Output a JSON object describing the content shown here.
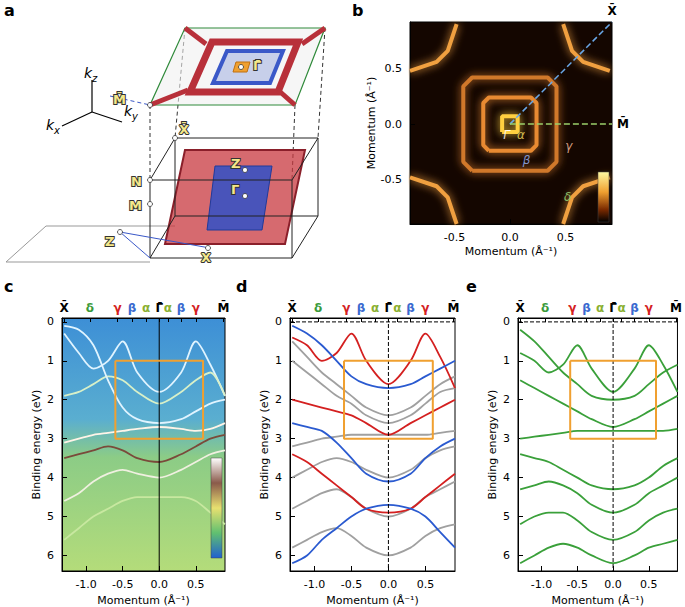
{
  "chart_data": [
    {
      "type": "diagram",
      "title": "a",
      "axes_labels": [
        {
          "text": "k",
          "sub": "z"
        },
        {
          "text": "k",
          "sub": "x"
        },
        {
          "text": "k",
          "sub": "y"
        }
      ],
      "labels": [
        "M̄",
        "X̄",
        "Γ̄",
        "Z",
        "Γ",
        "N",
        "M",
        "Z",
        "X"
      ]
    },
    {
      "type": "contour",
      "title": "b",
      "xlabel": "Momentum (Å⁻¹)",
      "ylabel": "Momentum (Å⁻¹)",
      "xlim": [
        -0.9,
        0.92
      ],
      "ylim": [
        -0.9,
        0.92
      ],
      "xticks": [
        -0.5,
        {
          "value": 0,
          "label": "0.0"
        },
        0.5
      ],
      "yticks": [
        -0.5,
        {
          "value": 0,
          "label": "0.0"
        },
        0.5
      ],
      "series": [
        {
          "color": "#ffd040",
          "x": [
            -0.07,
            0.07,
            0.07,
            -0.07,
            -0.07
          ],
          "y": [
            -0.07,
            -0.07,
            0.07,
            0.07,
            -0.07
          ]
        },
        {
          "color": "#e88a30",
          "x": [
            -0.19,
            0.19,
            0.24,
            0.24,
            0.19,
            -0.19,
            -0.24,
            -0.24,
            -0.19
          ],
          "y": [
            -0.24,
            -0.24,
            -0.19,
            0.19,
            0.24,
            0.24,
            0.19,
            -0.19,
            -0.24
          ]
        },
        {
          "color": "#d0782a",
          "x": [
            -0.34,
            0.34,
            0.42,
            0.42,
            0.34,
            -0.34,
            -0.42,
            -0.42,
            -0.34
          ],
          "y": [
            -0.42,
            -0.42,
            -0.34,
            0.34,
            0.42,
            0.42,
            0.34,
            -0.34,
            -0.42
          ]
        },
        {
          "color": "#f0a040",
          "x": [
            0.48,
            0.56,
            0.66,
            0.9
          ],
          "y": [
            0.9,
            0.66,
            0.56,
            0.48
          ]
        },
        {
          "color": "#f0a040",
          "x": [
            -0.48,
            -0.56,
            -0.66,
            -0.9
          ],
          "y": [
            0.9,
            0.66,
            0.56,
            0.48
          ]
        },
        {
          "color": "#f0a040",
          "x": [
            0.48,
            0.56,
            0.66,
            0.9
          ],
          "y": [
            -0.9,
            -0.66,
            -0.56,
            -0.48
          ]
        },
        {
          "color": "#f0a040",
          "x": [
            -0.48,
            -0.56,
            -0.66,
            -0.9
          ],
          "y": [
            -0.9,
            -0.66,
            -0.56,
            -0.48
          ]
        }
      ],
      "paths": [
        {
          "label": "X̄",
          "color": "#6aa8e8",
          "line_style": "dashed",
          "x": [
            0,
            0.92
          ],
          "y": [
            0,
            0.92
          ]
        },
        {
          "label": "M̄",
          "color": "#9bd06a",
          "line_style": "dashed",
          "x": [
            0,
            0.92
          ],
          "y": [
            0,
            0
          ]
        }
      ],
      "annotations": [
        {
          "text": "Γ̄",
          "x": -0.03,
          "y": -0.1,
          "color": "#ffffff"
        },
        {
          "text": "α",
          "x": 0.1,
          "y": -0.1,
          "color": "#ffe060"
        },
        {
          "text": "β",
          "x": 0.15,
          "y": -0.32,
          "color": "#9ab8ff"
        },
        {
          "text": "γ",
          "x": 0.53,
          "y": -0.2,
          "color": "#ffc0a0"
        },
        {
          "text": "δ",
          "x": 0.52,
          "y": -0.66,
          "color": "#a0e080"
        }
      ]
    },
    {
      "type": "line",
      "title": "c",
      "xlabel": "Momentum (Å⁻¹)",
      "ylabel": "Binding energy (eV)",
      "xlim": [
        -1.33,
        0.9
      ],
      "ylim": [
        -0.1,
        6.4
      ],
      "xticks": [
        {
          "value": -1,
          "label": "-1.0"
        },
        -0.5,
        {
          "value": 0,
          "label": "0.0"
        },
        0.5
      ],
      "yticks": [
        0,
        1,
        2,
        3,
        4,
        5,
        6
      ],
      "x2ticks": [
        {
          "value": -1.3,
          "label": "X̄",
          "color": "#000000"
        },
        {
          "value": -0.95,
          "label": "δ",
          "color": "#3a9a3a"
        },
        {
          "value": -0.57,
          "label": "γ",
          "color": "#d42020"
        },
        {
          "value": -0.37,
          "label": "β",
          "color": "#3a6ad0"
        },
        {
          "value": -0.18,
          "label": "α",
          "color": "#8ab030"
        },
        {
          "value": 0,
          "label": "Γ̄",
          "color": "#000000"
        },
        {
          "value": 0.12,
          "label": "α",
          "color": "#8ab030"
        },
        {
          "value": 0.3,
          "label": "β",
          "color": "#3a6ad0"
        },
        {
          "value": 0.5,
          "label": "γ",
          "color": "#d42020"
        },
        {
          "value": 0.88,
          "label": "M̄",
          "color": "#000000"
        }
      ],
      "x": [
        -1.3,
        -1.1,
        -0.9,
        -0.7,
        -0.5,
        -0.3,
        0,
        0.3,
        0.5,
        0.7,
        0.9
      ],
      "series": [
        {
          "color": "#e0f4ff",
          "values": [
            0.3,
            0.8,
            1.2,
            1.0,
            0.5,
            1.3,
            1.8,
            1.3,
            0.5,
            1.1,
            1.9
          ]
        },
        {
          "color": "#d8f0c8",
          "values": [
            1.9,
            1.8,
            1.6,
            1.4,
            1.5,
            1.8,
            2.1,
            1.8,
            1.5,
            1.3,
            1.9
          ]
        },
        {
          "color": "#fff4e8",
          "values": [
            3.1,
            3.0,
            2.9,
            2.85,
            2.8,
            2.75,
            2.7,
            2.75,
            2.8,
            2.75,
            2.6
          ]
        },
        {
          "color": "#7a4a3a",
          "values": [
            3.5,
            3.4,
            3.3,
            3.2,
            3.3,
            3.5,
            3.6,
            3.4,
            3.2,
            3.0,
            2.9
          ]
        },
        {
          "color": "#f0f0e0",
          "values": [
            4.6,
            4.4,
            4.1,
            3.9,
            3.8,
            3.9,
            4.0,
            3.8,
            3.6,
            3.4,
            3.3
          ]
        },
        {
          "color": "#c8e8a0",
          "values": [
            5.6,
            5.3,
            5.0,
            4.8,
            4.6,
            4.5,
            4.5,
            4.5,
            4.6,
            4.9,
            5.2
          ]
        },
        {
          "color": "#e0f4ff",
          "values": [
            0.1,
            0.2,
            0.6,
            1.5,
            2.2,
            2.5,
            2.6,
            2.5,
            2.3,
            2.1,
            2.0
          ]
        },
        {
          "color": "#000000",
          "line_style": "solid",
          "x": [
            0,
            0
          ],
          "values": [
            -0.1,
            6.4
          ]
        }
      ],
      "box": {
        "x": [
          -0.6,
          0.6
        ],
        "y": [
          1,
          3
        ],
        "color": "#f0a030"
      }
    },
    {
      "type": "line",
      "title": "d",
      "xlabel": "Momentum (Å⁻¹)",
      "ylabel": "Binding energy (eV)",
      "xlim": [
        -1.33,
        0.9
      ],
      "ylim": [
        -0.1,
        6.4
      ],
      "xticks": [
        {
          "value": -1,
          "label": "-1.0"
        },
        -0.5,
        {
          "value": 0,
          "label": "0.0"
        },
        0.5
      ],
      "yticks": [
        0,
        1,
        2,
        3,
        4,
        5,
        6
      ],
      "x2ticks": [
        {
          "value": -1.3,
          "label": "X̄",
          "color": "#000000"
        },
        {
          "value": -0.95,
          "label": "δ",
          "color": "#3a9a3a"
        },
        {
          "value": -0.57,
          "label": "γ",
          "color": "#d42020"
        },
        {
          "value": -0.37,
          "label": "β",
          "color": "#3a6ad0"
        },
        {
          "value": -0.18,
          "label": "α",
          "color": "#8ab030"
        },
        {
          "value": 0,
          "label": "Γ̄",
          "color": "#000000"
        },
        {
          "value": 0.12,
          "label": "α",
          "color": "#8ab030"
        },
        {
          "value": 0.3,
          "label": "β",
          "color": "#3a6ad0"
        },
        {
          "value": 0.5,
          "label": "γ",
          "color": "#d42020"
        },
        {
          "value": 0.88,
          "label": "M̄",
          "color": "#000000"
        }
      ],
      "x": [
        -1.3,
        -1.1,
        -0.9,
        -0.7,
        -0.5,
        -0.3,
        0,
        0.3,
        0.5,
        0.7,
        0.9
      ],
      "series": [
        {
          "color": "#a0a0a0",
          "values": [
            0.5,
            0.9,
            1.3,
            1.6,
            1.9,
            2.2,
            2.4,
            2.2,
            1.9,
            1.6,
            1.4
          ]
        },
        {
          "color": "#a0a0a0",
          "values": [
            1.0,
            1.3,
            1.6,
            1.9,
            2.1,
            2.4,
            2.6,
            2.4,
            2.1,
            1.8,
            1.7
          ]
        },
        {
          "color": "#a0a0a0",
          "values": [
            3.2,
            3.1,
            3.0,
            2.95,
            2.9,
            2.9,
            2.9,
            2.9,
            2.9,
            2.85,
            2.8
          ]
        },
        {
          "color": "#a0a0a0",
          "values": [
            4.0,
            3.8,
            3.6,
            3.5,
            3.6,
            3.8,
            4.0,
            3.8,
            3.5,
            3.3,
            3.2
          ]
        },
        {
          "color": "#a0a0a0",
          "values": [
            4.8,
            4.6,
            4.4,
            4.3,
            4.5,
            4.8,
            5.0,
            4.8,
            4.5,
            4.3,
            4.1
          ]
        },
        {
          "color": "#a0a0a0",
          "values": [
            5.8,
            5.6,
            5.4,
            5.3,
            5.5,
            5.8,
            6.0,
            5.8,
            5.5,
            5.3,
            5.2
          ]
        },
        {
          "color": "#d42020",
          "values": [
            0.4,
            0.6,
            1.0,
            0.8,
            0.3,
            1.0,
            1.6,
            1.0,
            0.3,
            0.9,
            1.7
          ]
        },
        {
          "color": "#d42020",
          "values": [
            2.0,
            2.1,
            2.2,
            2.3,
            2.4,
            2.6,
            2.9,
            2.6,
            2.4,
            2.2,
            2.0
          ]
        },
        {
          "color": "#d42020",
          "values": [
            3.4,
            3.6,
            3.9,
            4.2,
            4.5,
            4.8,
            4.9,
            4.8,
            4.5,
            4.2,
            3.9
          ]
        },
        {
          "color": "#2a5ad0",
          "values": [
            0.1,
            0.3,
            0.6,
            1.0,
            1.4,
            1.6,
            1.7,
            1.6,
            1.4,
            1.2,
            1.0
          ]
        },
        {
          "color": "#2a5ad0",
          "values": [
            2.6,
            2.7,
            2.8,
            3.1,
            3.5,
            3.9,
            4.1,
            3.9,
            3.5,
            3.2,
            3.0
          ]
        },
        {
          "color": "#2a5ad0",
          "values": [
            6.2,
            6.0,
            5.6,
            5.3,
            5.0,
            4.8,
            4.7,
            4.8,
            5.0,
            5.4,
            5.8
          ]
        },
        {
          "color": "#000000",
          "line_style": "dashed",
          "x": [
            0,
            0
          ],
          "values": [
            -0.1,
            6.4
          ]
        },
        {
          "color": "#000000",
          "line_style": "dashed",
          "x": [
            -1.33,
            0.9
          ],
          "values": [
            0,
            0
          ]
        }
      ],
      "box": {
        "x": [
          -0.6,
          0.6
        ],
        "y": [
          1,
          3
        ],
        "color": "#f0a030"
      }
    },
    {
      "type": "line",
      "title": "e",
      "xlabel": "Momentum (Å⁻¹)",
      "ylabel": "Binding energy (eV)",
      "xlim": [
        -1.33,
        0.9
      ],
      "ylim": [
        -0.1,
        6.4
      ],
      "xticks": [
        {
          "value": -1,
          "label": "-1.0"
        },
        -0.5,
        {
          "value": 0,
          "label": "0.0"
        },
        0.5
      ],
      "yticks": [
        0,
        1,
        2,
        3,
        4,
        5,
        6
      ],
      "x2ticks": [
        {
          "value": -1.3,
          "label": "X̄",
          "color": "#000000"
        },
        {
          "value": -0.95,
          "label": "δ",
          "color": "#3a9a3a"
        },
        {
          "value": -0.57,
          "label": "γ",
          "color": "#d42020"
        },
        {
          "value": -0.37,
          "label": "β",
          "color": "#3a6ad0"
        },
        {
          "value": -0.18,
          "label": "α",
          "color": "#8ab030"
        },
        {
          "value": 0,
          "label": "Γ̄",
          "color": "#000000"
        },
        {
          "value": 0.12,
          "label": "α",
          "color": "#8ab030"
        },
        {
          "value": 0.3,
          "label": "β",
          "color": "#3a6ad0"
        },
        {
          "value": 0.5,
          "label": "γ",
          "color": "#d42020"
        },
        {
          "value": 0.88,
          "label": "M̄",
          "color": "#000000"
        }
      ],
      "x": [
        -1.3,
        -1.1,
        -0.9,
        -0.7,
        -0.5,
        -0.3,
        0,
        0.3,
        0.5,
        0.7,
        0.9
      ],
      "series": [
        {
          "color": "#3aa03a",
          "values": [
            0.2,
            0.5,
            0.9,
            1.3,
            1.6,
            1.9,
            2.0,
            1.9,
            1.6,
            1.3,
            1.1
          ]
        },
        {
          "color": "#3aa03a",
          "values": [
            0.8,
            1.0,
            1.3,
            1.1,
            0.6,
            1.2,
            1.8,
            1.2,
            0.6,
            1.1,
            1.8
          ]
        },
        {
          "color": "#3aa03a",
          "values": [
            1.5,
            1.7,
            1.9,
            2.1,
            2.3,
            2.5,
            2.7,
            2.5,
            2.3,
            2.1,
            1.9
          ]
        },
        {
          "color": "#3aa03a",
          "values": [
            3.0,
            2.95,
            2.9,
            2.85,
            2.8,
            2.8,
            2.8,
            2.8,
            2.8,
            2.8,
            2.75
          ]
        },
        {
          "color": "#3aa03a",
          "values": [
            3.4,
            3.5,
            3.6,
            3.8,
            4.0,
            4.2,
            4.3,
            4.2,
            4.0,
            3.7,
            3.5
          ]
        },
        {
          "color": "#3aa03a",
          "values": [
            4.3,
            4.2,
            4.1,
            4.2,
            4.4,
            4.7,
            4.9,
            4.7,
            4.4,
            4.2,
            4.0
          ]
        },
        {
          "color": "#3aa03a",
          "values": [
            5.2,
            5.0,
            4.9,
            4.9,
            5.1,
            5.4,
            5.6,
            5.4,
            5.1,
            4.9,
            4.8
          ]
        },
        {
          "color": "#3aa03a",
          "values": [
            6.2,
            6.0,
            5.8,
            5.7,
            5.8,
            6.0,
            6.2,
            6.0,
            5.8,
            5.7,
            5.6
          ]
        },
        {
          "color": "#000000",
          "line_style": "dashed",
          "x": [
            0,
            0
          ],
          "values": [
            -0.1,
            6.4
          ]
        },
        {
          "color": "#000000",
          "line_style": "dashed",
          "x": [
            -1.33,
            0.9
          ],
          "values": [
            0,
            0
          ]
        }
      ],
      "box": {
        "x": [
          -0.6,
          0.6
        ],
        "y": [
          1,
          3
        ],
        "color": "#f0a030"
      }
    }
  ]
}
